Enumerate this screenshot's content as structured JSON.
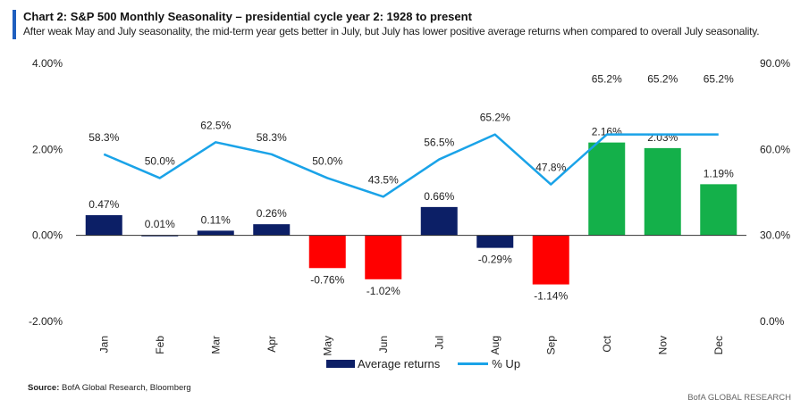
{
  "header": {
    "title": "Chart 2: S&P 500 Monthly Seasonality – presidential cycle year 2: 1928 to present",
    "subtitle": "After weak May and July seasonality, the mid-term year gets better in July, but July has lower positive average returns when compared to overall July seasonality."
  },
  "footer": {
    "source_label": "Source:",
    "source_text": "BofA Global Research, Bloomberg",
    "brand": "BofA GLOBAL RESEARCH"
  },
  "legend": {
    "bar_label": "Average returns",
    "line_label": "% Up"
  },
  "chart_data": {
    "type": "bar",
    "categories": [
      "Jan",
      "Feb",
      "Mar",
      "Apr",
      "May",
      "Jun",
      "Jul",
      "Aug",
      "Sep",
      "Oct",
      "Nov",
      "Dec"
    ],
    "series": [
      {
        "name": "Average returns",
        "type": "bar",
        "axis": "left",
        "values": [
          0.47,
          0.01,
          0.11,
          0.26,
          -0.76,
          -1.02,
          0.66,
          -0.29,
          -1.14,
          2.16,
          2.03,
          1.19
        ],
        "labels": [
          "0.47%",
          "0.01%",
          "0.11%",
          "0.26%",
          "-0.76%",
          "-1.02%",
          "0.66%",
          "-0.29%",
          "-1.14%",
          "2.16%",
          "2.03%",
          "1.19%"
        ],
        "colors": [
          "#0c1f66",
          "#0c1f66",
          "#0c1f66",
          "#0c1f66",
          "#ff0000",
          "#ff0000",
          "#0c1f66",
          "#0c1f66",
          "#ff0000",
          "#14b04a",
          "#14b04a",
          "#14b04a"
        ]
      },
      {
        "name": "% Up",
        "type": "line",
        "axis": "right",
        "values": [
          58.3,
          50.0,
          62.5,
          58.3,
          50.0,
          43.5,
          56.5,
          65.2,
          47.8,
          65.2,
          65.2,
          65.2
        ],
        "labels": [
          "58.3%",
          "50.0%",
          "62.5%",
          "58.3%",
          "50.0%",
          "43.5%",
          "56.5%",
          "65.2%",
          "47.8%",
          "65.2%",
          "65.2%",
          "65.2%"
        ],
        "color": "#1aa3e8"
      }
    ],
    "y_left": {
      "ylim": [
        -2,
        4
      ],
      "ticks": [
        -2,
        0,
        2,
        4
      ],
      "tick_labels": [
        "-2.00%",
        "0.00%",
        "2.00%",
        "4.00%"
      ]
    },
    "y_right": {
      "ylim": [
        0,
        90
      ],
      "ticks": [
        0,
        30,
        60,
        90
      ],
      "tick_labels": [
        "0.0%",
        "30.0%",
        "60.0%",
        "90.0%"
      ]
    },
    "grid": false,
    "legend_position": "bottom"
  }
}
